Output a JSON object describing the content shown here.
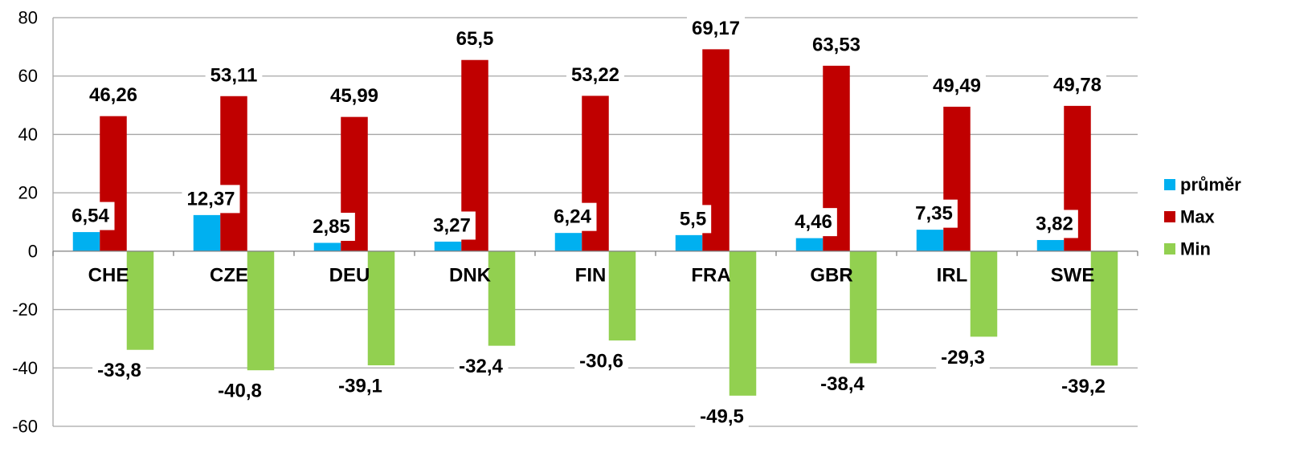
{
  "chart_data": {
    "type": "bar",
    "categories": [
      "CHE",
      "CZE",
      "DEU",
      "DNK",
      "FIN",
      "FRA",
      "GBR",
      "IRL",
      "SWE"
    ],
    "series": [
      {
        "name": "průměr",
        "color": "#00B0F0",
        "values": [
          6.54,
          12.37,
          2.85,
          3.27,
          6.24,
          5.5,
          4.46,
          7.35,
          3.82
        ],
        "labels": [
          "6,54",
          "12,37",
          "2,85",
          "3,27",
          "6,24",
          "5,5",
          "4,46",
          "7,35",
          "3,82"
        ]
      },
      {
        "name": "Max",
        "color": "#C00000",
        "values": [
          46.26,
          53.11,
          45.99,
          65.5,
          53.22,
          69.17,
          63.53,
          49.49,
          49.78
        ],
        "labels": [
          "46,26",
          "53,11",
          "45,99",
          "65,5",
          "53,22",
          "69,17",
          "63,53",
          "49,49",
          "49,78"
        ]
      },
      {
        "name": "Min",
        "color": "#92D050",
        "values": [
          -33.8,
          -40.8,
          -39.1,
          -32.4,
          -30.6,
          -49.5,
          -38.4,
          -29.3,
          -39.2
        ],
        "labels": [
          "-33,8",
          "-40,8",
          "-39,1",
          "-32,4",
          "-30,6",
          "-49,5",
          "-38,4",
          "-29,3",
          "-39,2"
        ]
      }
    ],
    "ylim": [
      -60,
      80
    ],
    "yticks": [
      80,
      60,
      40,
      20,
      0,
      -20,
      -40,
      -60
    ],
    "grid": true,
    "gridColor": "#A6A6A6",
    "legend_position": "right"
  }
}
